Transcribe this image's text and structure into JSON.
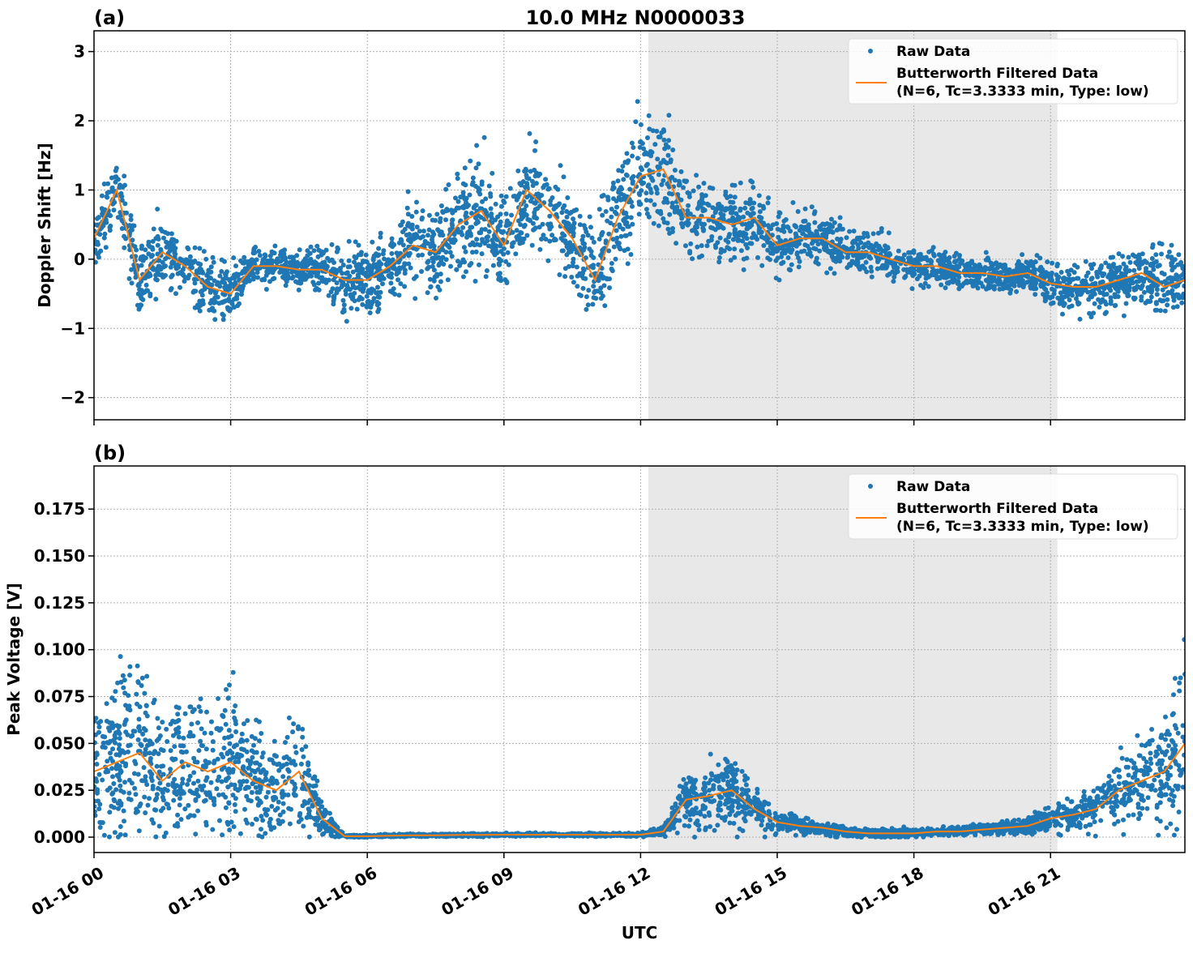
{
  "title": "10.0 MHz N0000033",
  "xlabel": "UTC",
  "x_tick_labels": [
    "01-16 00",
    "01-16 03",
    "01-16 06",
    "01-16 09",
    "01-16 12",
    "01-16 15",
    "01-16 18",
    "01-16 21"
  ],
  "colors": {
    "raw": "#1f77b4",
    "filtered": "#ff7f0e",
    "shade": "#e8e8e8",
    "grid": "#b0b0b0"
  },
  "chart_data": [
    {
      "type": "scatter+line",
      "panel_label": "(a)",
      "ylabel": "Doppler Shift [Hz]",
      "x_unit": "hours UTC on 01-16",
      "xlim": [
        0,
        23.95
      ],
      "ylim": [
        -2.32,
        3.3
      ],
      "y_ticks": [
        -2,
        -1,
        0,
        1,
        2,
        3
      ],
      "y_tick_labels": [
        "−2",
        "−1",
        "0",
        "1",
        "2",
        "3"
      ],
      "grid": true,
      "shaded_span": [
        12.17,
        21.15
      ],
      "legend": {
        "placement": "top-right",
        "entries": [
          "Raw Data",
          "Butterworth Filtered Data",
          "(N=6, Tc=3.3333 min, Type: low)"
        ]
      },
      "x": [
        0,
        0.5,
        1,
        1.5,
        2,
        2.5,
        3,
        3.5,
        4,
        4.5,
        5,
        5.5,
        6,
        6.5,
        7,
        7.5,
        8,
        8.5,
        9,
        9.5,
        10,
        10.5,
        11,
        11.5,
        12,
        12.5,
        13,
        13.5,
        14,
        14.5,
        15,
        15.5,
        16,
        16.5,
        17,
        17.5,
        18,
        18.5,
        19,
        19.5,
        20,
        20.5,
        21,
        21.5,
        22,
        22.5,
        23,
        23.5,
        23.95
      ],
      "filtered": [
        0.3,
        1.0,
        -0.3,
        0.1,
        -0.1,
        -0.4,
        -0.5,
        -0.1,
        -0.1,
        -0.15,
        -0.15,
        -0.3,
        -0.3,
        -0.1,
        0.2,
        0.1,
        0.5,
        0.7,
        0.2,
        1.0,
        0.7,
        0.3,
        -0.3,
        0.6,
        1.2,
        1.3,
        0.6,
        0.6,
        0.5,
        0.6,
        0.2,
        0.3,
        0.3,
        0.1,
        0.1,
        0.0,
        -0.1,
        -0.1,
        -0.2,
        -0.2,
        -0.25,
        -0.2,
        -0.35,
        -0.4,
        -0.4,
        -0.3,
        -0.2,
        -0.4,
        -0.3
      ],
      "raw_spread": [
        0.5,
        0.6,
        0.8,
        0.6,
        0.5,
        0.6,
        0.6,
        0.35,
        0.3,
        0.3,
        0.5,
        0.6,
        0.6,
        0.6,
        0.8,
        0.8,
        0.9,
        1.0,
        1.0,
        0.9,
        0.9,
        0.9,
        1.0,
        1.0,
        1.1,
        1.1,
        0.8,
        0.7,
        0.7,
        0.7,
        0.6,
        0.5,
        0.5,
        0.4,
        0.4,
        0.35,
        0.35,
        0.35,
        0.3,
        0.3,
        0.3,
        0.3,
        0.45,
        0.5,
        0.5,
        0.55,
        0.6,
        0.7,
        0.6
      ]
    },
    {
      "type": "scatter+line",
      "panel_label": "(b)",
      "ylabel": "Peak Voltage [V]",
      "x_unit": "hours UTC on 01-16",
      "xlim": [
        0,
        23.95
      ],
      "ylim": [
        -0.0082,
        0.198
      ],
      "y_ticks": [
        0,
        0.025,
        0.05,
        0.075,
        0.1,
        0.125,
        0.15,
        0.175
      ],
      "y_tick_labels": [
        "0.000",
        "0.025",
        "0.050",
        "0.075",
        "0.100",
        "0.125",
        "0.150",
        "0.175"
      ],
      "grid": true,
      "shaded_span": [
        12.17,
        21.15
      ],
      "legend": {
        "placement": "top-right",
        "entries": [
          "Raw Data",
          "Butterworth Filtered Data",
          "(N=6, Tc=3.3333 min, Type: low)"
        ]
      },
      "x": [
        0,
        0.5,
        1,
        1.5,
        2,
        2.5,
        3,
        3.5,
        4,
        4.5,
        5,
        5.5,
        6,
        6.5,
        7,
        7.5,
        8,
        8.5,
        9,
        9.5,
        10,
        10.5,
        11,
        11.5,
        12,
        12.5,
        13,
        13.5,
        14,
        14.5,
        15,
        15.5,
        16,
        16.5,
        17,
        17.5,
        18,
        18.5,
        19,
        19.5,
        20,
        20.5,
        21,
        21.5,
        22,
        22.5,
        23,
        23.5,
        23.95
      ],
      "filtered": [
        0.035,
        0.04,
        0.045,
        0.03,
        0.04,
        0.035,
        0.04,
        0.03,
        0.025,
        0.035,
        0.01,
        0.0005,
        0.0005,
        0.0008,
        0.001,
        0.001,
        0.0012,
        0.0012,
        0.0013,
        0.0013,
        0.0013,
        0.0013,
        0.0013,
        0.0013,
        0.0013,
        0.003,
        0.02,
        0.022,
        0.025,
        0.015,
        0.008,
        0.006,
        0.005,
        0.003,
        0.002,
        0.002,
        0.002,
        0.003,
        0.003,
        0.004,
        0.005,
        0.006,
        0.01,
        0.012,
        0.015,
        0.025,
        0.03,
        0.035,
        0.05
      ],
      "raw_spread": [
        0.04,
        0.06,
        0.06,
        0.045,
        0.05,
        0.05,
        0.05,
        0.04,
        0.03,
        0.045,
        0.012,
        0.001,
        0.0008,
        0.001,
        0.001,
        0.001,
        0.001,
        0.001,
        0.001,
        0.001,
        0.001,
        0.001,
        0.001,
        0.001,
        0.001,
        0.004,
        0.02,
        0.025,
        0.025,
        0.018,
        0.008,
        0.006,
        0.005,
        0.004,
        0.003,
        0.003,
        0.003,
        0.003,
        0.003,
        0.004,
        0.005,
        0.006,
        0.01,
        0.012,
        0.016,
        0.03,
        0.03,
        0.04,
        0.07
      ]
    }
  ]
}
